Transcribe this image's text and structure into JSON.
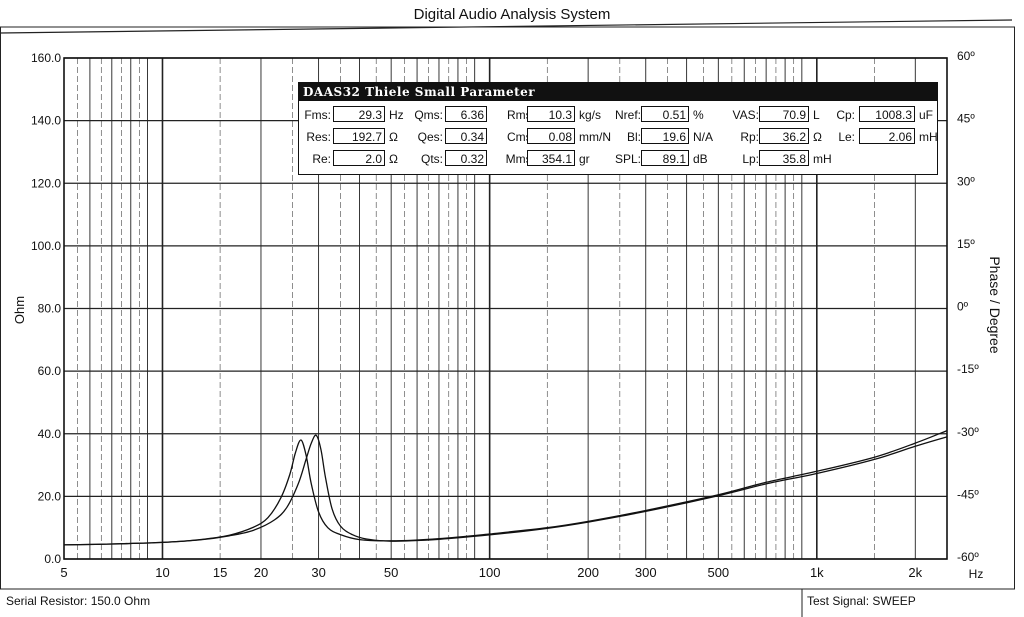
{
  "app_title": "Digital Audio Analysis System",
  "footer": {
    "serial_resistor": "Serial Resistor: 150.0 Ohm",
    "test_signal": "Test Signal: SWEEP"
  },
  "ts_panel": {
    "title": "DAAS32 Thiele Small Parameter",
    "params": [
      [
        {
          "label": "Fms:",
          "value": "29.3",
          "unit": "Hz"
        },
        {
          "label": "Qms:",
          "value": "6.36",
          "unit": ""
        },
        {
          "label": "Rms:",
          "value": "10.3",
          "unit": "kg/s"
        },
        {
          "label": "Nref:",
          "value": "0.51",
          "unit": "%"
        },
        {
          "label": "VAS:",
          "value": "70.9",
          "unit": "L"
        },
        {
          "label": "Cp:",
          "value": "1008.3",
          "unit": "uF"
        }
      ],
      [
        {
          "label": "Res:",
          "value": "192.7",
          "unit": "Ω"
        },
        {
          "label": "Qes:",
          "value": "0.34",
          "unit": ""
        },
        {
          "label": "Cms:",
          "value": "0.08",
          "unit": "mm/N"
        },
        {
          "label": "Bl:",
          "value": "19.6",
          "unit": "N/A"
        },
        {
          "label": "Rp:",
          "value": "36.2",
          "unit": "Ω"
        },
        {
          "label": "Le:",
          "value": "2.06",
          "unit": "mH"
        }
      ],
      [
        {
          "label": "Re:",
          "value": "2.0",
          "unit": "Ω"
        },
        {
          "label": "Qts:",
          "value": "0.32",
          "unit": ""
        },
        {
          "label": "Mms:",
          "value": "354.1",
          "unit": "gr"
        },
        {
          "label": "SPL:",
          "value": "89.1",
          "unit": "dB"
        },
        {
          "label": "Lp:",
          "value": "35.8",
          "unit": "mH"
        }
      ]
    ]
  },
  "chart_data": {
    "type": "line",
    "xscale": "log",
    "xlabel": "Hz",
    "ylabel": "Ohm",
    "y2label": "Phase / Degree",
    "xlim": [
      5,
      2500
    ],
    "ylim": [
      0,
      160
    ],
    "y2lim": [
      -60,
      60
    ],
    "grid": true,
    "xticks": [
      5,
      10,
      15,
      20,
      30,
      50,
      100,
      200,
      300,
      500,
      1000,
      2000
    ],
    "xtick_labels": [
      "5",
      "10",
      "15",
      "20",
      "30",
      "50",
      "100",
      "200",
      "300",
      "500",
      "1k",
      "2k"
    ],
    "yticks": [
      0,
      20,
      40,
      60,
      80,
      100,
      120,
      140,
      160
    ],
    "ytick_labels": [
      "0.0",
      "20.0",
      "40.0",
      "60.0",
      "80.0",
      "100.0",
      "120.0",
      "140.0",
      "160.0"
    ],
    "y2ticks": [
      -60,
      -45,
      -30,
      -15,
      0,
      15,
      30,
      45,
      60
    ],
    "y2tick_labels": [
      "-60º",
      "-45º",
      "-30º",
      "-15º",
      "0º",
      "15º",
      "30º",
      "45º",
      "60º"
    ],
    "series": [
      {
        "x": [
          5,
          7,
          10,
          13,
          16,
          19,
          21,
          23,
          24.5,
          25.5,
          26.5,
          27.5,
          28.5,
          30,
          32,
          35,
          40,
          50,
          70,
          100,
          150,
          200,
          300,
          500,
          700,
          1000,
          1500,
          2000,
          2500
        ],
        "y": [
          4.5,
          4.8,
          5.3,
          6.2,
          7.6,
          10.2,
          13.2,
          19.5,
          27,
          34,
          38,
          33,
          24,
          15,
          10,
          7.8,
          6.2,
          5.8,
          6.5,
          8,
          10,
          12,
          15.5,
          20.5,
          24.5,
          28,
          32.5,
          37,
          41
        ]
      },
      {
        "x": [
          5,
          7,
          10,
          13,
          16,
          19,
          22,
          24,
          26,
          27.5,
          28.5,
          29.5,
          30.5,
          31.5,
          33,
          35,
          38,
          42,
          50,
          70,
          100,
          150,
          200,
          300,
          500,
          700,
          1000,
          1500,
          2000,
          2500
        ],
        "y": [
          4.5,
          4.8,
          5.3,
          6.1,
          7.4,
          9.2,
          12.5,
          16.5,
          24,
          32,
          37,
          39.5,
          35,
          26,
          16,
          10.5,
          7.8,
          6.4,
          5.7,
          6.3,
          7.7,
          9.8,
          11.8,
          15.2,
          20.2,
          24,
          27.3,
          31.8,
          36,
          39
        ]
      }
    ]
  }
}
